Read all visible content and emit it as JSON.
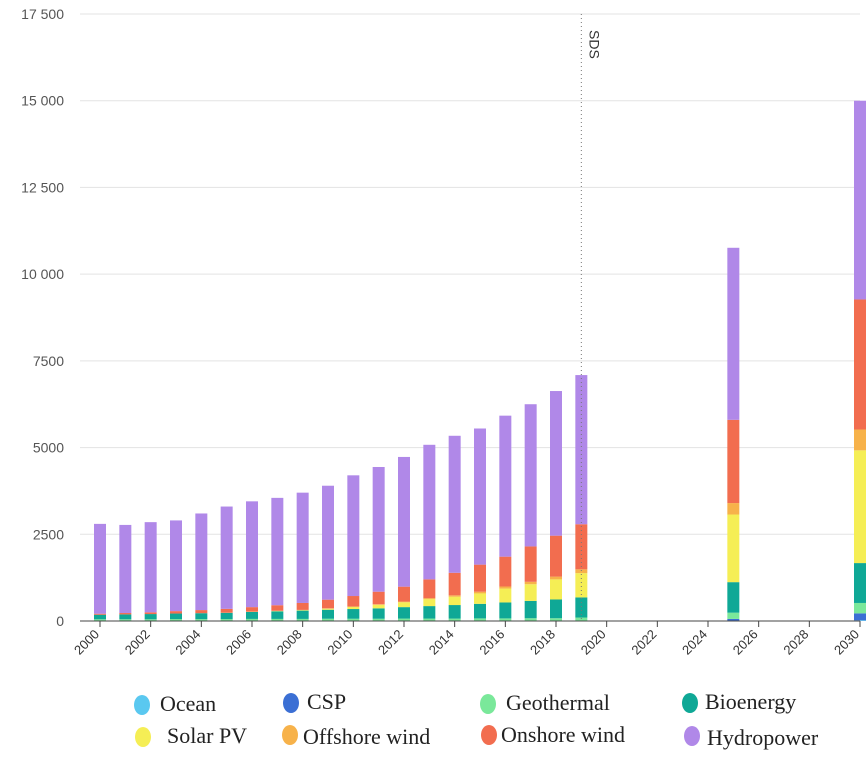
{
  "chart_data": {
    "type": "bar",
    "stacked": true,
    "title": "",
    "xlabel": "",
    "ylabel": "",
    "ylim": [
      0,
      17500
    ],
    "yticks": [
      0,
      2500,
      5000,
      7500,
      10000,
      12500,
      15000,
      17500
    ],
    "ytick_labels": [
      "0",
      "2500",
      "5000",
      "7500",
      "10 000",
      "12 500",
      "15 000",
      "17 500"
    ],
    "grid": true,
    "xlim": [
      2000,
      2030
    ],
    "xticks": [
      2000,
      2002,
      2004,
      2006,
      2008,
      2010,
      2012,
      2014,
      2016,
      2018,
      2020,
      2022,
      2024,
      2026,
      2028,
      2030
    ],
    "xtick_labels": [
      "2000",
      "2002",
      "2004",
      "2006",
      "2008",
      "2010",
      "2012",
      "2014",
      "2016",
      "2018",
      "2020",
      "2022",
      "2024",
      "2026",
      "2028",
      "2030"
    ],
    "annotation": {
      "label": "SDS",
      "x": 2019,
      "style": "dotted vertical line"
    },
    "legend_position": "bottom",
    "x": [
      2000,
      2001,
      2002,
      2003,
      2004,
      2005,
      2006,
      2007,
      2008,
      2009,
      2010,
      2011,
      2012,
      2013,
      2014,
      2015,
      2016,
      2017,
      2018,
      2019,
      2025,
      2030
    ],
    "series": [
      {
        "name": "Ocean",
        "color": "#5ac8f0",
        "values": [
          0,
          0,
          0,
          0,
          0,
          0,
          0,
          0,
          0,
          0,
          0,
          0,
          0,
          0,
          0,
          0,
          0,
          0,
          0,
          0,
          10,
          20
        ]
      },
      {
        "name": "CSP",
        "color": "#3b6fd4",
        "values": [
          0,
          0,
          0,
          0,
          0,
          0,
          0,
          0,
          0,
          0,
          0,
          0,
          0,
          0,
          0,
          0,
          0,
          0,
          0,
          10,
          50,
          200
        ]
      },
      {
        "name": "Geothermal",
        "color": "#7ae89a",
        "values": [
          50,
          50,
          50,
          55,
          55,
          55,
          60,
          60,
          60,
          65,
          65,
          65,
          70,
          70,
          70,
          75,
          75,
          80,
          80,
          90,
          180,
          300
        ]
      },
      {
        "name": "Bioenergy",
        "color": "#0fa896",
        "values": [
          130,
          140,
          150,
          160,
          170,
          180,
          200,
          220,
          240,
          260,
          280,
          300,
          330,
          360,
          390,
          420,
          460,
          500,
          540,
          580,
          880,
          1150
        ]
      },
      {
        "name": "Solar PV",
        "color": "#f5ee55",
        "values": [
          0,
          0,
          0,
          0,
          0,
          0,
          5,
          10,
          15,
          30,
          60,
          100,
          140,
          200,
          240,
          300,
          400,
          480,
          580,
          700,
          1950,
          3250
        ]
      },
      {
        "name": "Offshore wind",
        "color": "#f7b24a",
        "values": [
          0,
          0,
          0,
          0,
          0,
          5,
          5,
          5,
          5,
          10,
          15,
          20,
          20,
          30,
          40,
          50,
          60,
          70,
          80,
          110,
          330,
          600
        ]
      },
      {
        "name": "Onshore wind",
        "color": "#f26d4f",
        "values": [
          30,
          40,
          50,
          70,
          90,
          110,
          130,
          160,
          200,
          250,
          300,
          360,
          430,
          540,
          650,
          780,
          860,
          1020,
          1180,
          1300,
          2400,
          3750
        ]
      },
      {
        "name": "Hydropower",
        "color": "#b088e8",
        "values": [
          2590,
          2540,
          2600,
          2615,
          2785,
          2950,
          3050,
          3095,
          3180,
          3285,
          3480,
          3595,
          3740,
          3880,
          3950,
          3925,
          4065,
          4100,
          4170,
          4300,
          4960,
          5730
        ]
      }
    ]
  }
}
